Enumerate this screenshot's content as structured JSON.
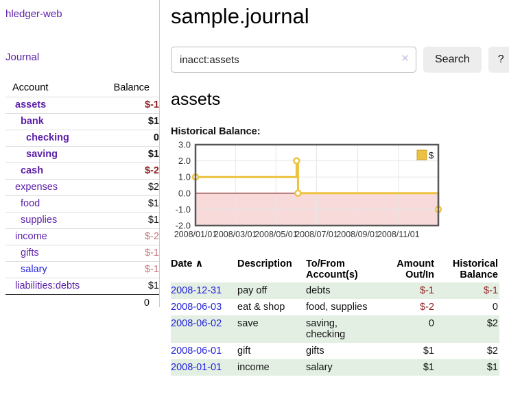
{
  "colors": {
    "link_purple": "#5b1ea8",
    "link_blue": "#2222dd",
    "negative_dark": "#8f1f1f",
    "negative_light": "#c4757b",
    "row_stripe_green": "#e3efe3",
    "chart_line_gold": "#edc240",
    "chart_negative_fill": "#f8dada",
    "chart_zero_line": "#7c1b1b",
    "chart_border": "#565656"
  },
  "sidebar": {
    "brand": "hledger-web",
    "journal_link": "Journal",
    "accounts_header": {
      "account": "Account",
      "balance": "Balance"
    },
    "accounts": [
      {
        "name": "assets",
        "depth": 0,
        "bold": true,
        "balance": "$-1",
        "balance_style": "neg-dark",
        "link_color": "purple"
      },
      {
        "name": "bank",
        "depth": 1,
        "bold": true,
        "balance": "$1",
        "balance_style": "pos",
        "link_color": "purple"
      },
      {
        "name": "checking",
        "depth": 2,
        "bold": true,
        "balance": "0",
        "balance_style": "pos",
        "link_color": "purple"
      },
      {
        "name": "saving",
        "depth": 2,
        "bold": true,
        "balance": "$1",
        "balance_style": "pos",
        "link_color": "purple"
      },
      {
        "name": "cash",
        "depth": 1,
        "bold": true,
        "balance": "$-2",
        "balance_style": "neg-dark",
        "link_color": "purple"
      },
      {
        "name": "expenses",
        "depth": 0,
        "bold": false,
        "balance": "$2",
        "balance_style": "pos",
        "link_color": "purple"
      },
      {
        "name": "food",
        "depth": 1,
        "bold": false,
        "balance": "$1",
        "balance_style": "pos",
        "link_color": "purple"
      },
      {
        "name": "supplies",
        "depth": 1,
        "bold": false,
        "balance": "$1",
        "balance_style": "pos",
        "link_color": "purple"
      },
      {
        "name": "income",
        "depth": 0,
        "bold": false,
        "balance": "$-2",
        "balance_style": "neg-light",
        "link_color": "purple"
      },
      {
        "name": "gifts",
        "depth": 1,
        "bold": false,
        "balance": "$-1",
        "balance_style": "neg-light",
        "link_color": "purple"
      },
      {
        "name": "salary",
        "depth": 1,
        "bold": false,
        "balance": "$-1",
        "balance_style": "neg-light",
        "link_color": "blue"
      },
      {
        "name": "liabilities:debts",
        "depth": 0,
        "bold": false,
        "balance": "$1",
        "balance_style": "pos",
        "link_color": "purple"
      }
    ],
    "total": "0"
  },
  "main": {
    "title": "sample.journal",
    "search": {
      "value": "inacct:assets",
      "clear_icon": "✕",
      "search_button": "Search",
      "help_button": "?"
    },
    "account_heading": "assets",
    "chart_label": "Historical Balance:"
  },
  "chart_data": {
    "type": "line",
    "title": "Historical Balance",
    "step": true,
    "x_range": [
      "2008-01-01",
      "2008-12-31"
    ],
    "x_tick_labels": [
      "2008/01/01",
      "2008/03/01",
      "2008/05/01",
      "2008/07/01",
      "2008/09/01",
      "2008/11/01"
    ],
    "y_ticks": [
      3.0,
      2.0,
      1.0,
      0.0,
      -1.0,
      -2.0
    ],
    "ylim": [
      -2.0,
      3.0
    ],
    "grid": true,
    "legend": {
      "label": "$",
      "position": "top-right"
    },
    "series": [
      {
        "name": "$",
        "color": "#edc240",
        "points": [
          [
            "2008-01-01",
            1
          ],
          [
            "2008-06-01",
            2
          ],
          [
            "2008-06-03",
            0
          ],
          [
            "2008-12-31",
            -1
          ]
        ]
      }
    ]
  },
  "register": {
    "headers": {
      "date": "Date",
      "sort_icon": "∧",
      "description": "Description",
      "accounts": "To/From Account(s)",
      "amount": "Amount Out/In",
      "balance": "Historical Balance"
    },
    "rows": [
      {
        "date": "2008-12-31",
        "description": "pay off",
        "accounts": "debts",
        "amount": "$-1",
        "amount_neg": true,
        "balance": "$-1",
        "balance_neg": true,
        "stripe": true
      },
      {
        "date": "2008-06-03",
        "description": "eat & shop",
        "accounts": "food, supplies",
        "amount": "$-2",
        "amount_neg": true,
        "balance": "0",
        "balance_neg": false,
        "stripe": false
      },
      {
        "date": "2008-06-02",
        "description": "save",
        "accounts": "saving, checking",
        "amount": "0",
        "amount_neg": false,
        "balance": "$2",
        "balance_neg": false,
        "stripe": true
      },
      {
        "date": "2008-06-01",
        "description": "gift",
        "accounts": "gifts",
        "amount": "$1",
        "amount_neg": false,
        "balance": "$2",
        "balance_neg": false,
        "stripe": false
      },
      {
        "date": "2008-01-01",
        "description": "income",
        "accounts": "salary",
        "amount": "$1",
        "amount_neg": false,
        "balance": "$1",
        "balance_neg": false,
        "stripe": true
      }
    ]
  }
}
